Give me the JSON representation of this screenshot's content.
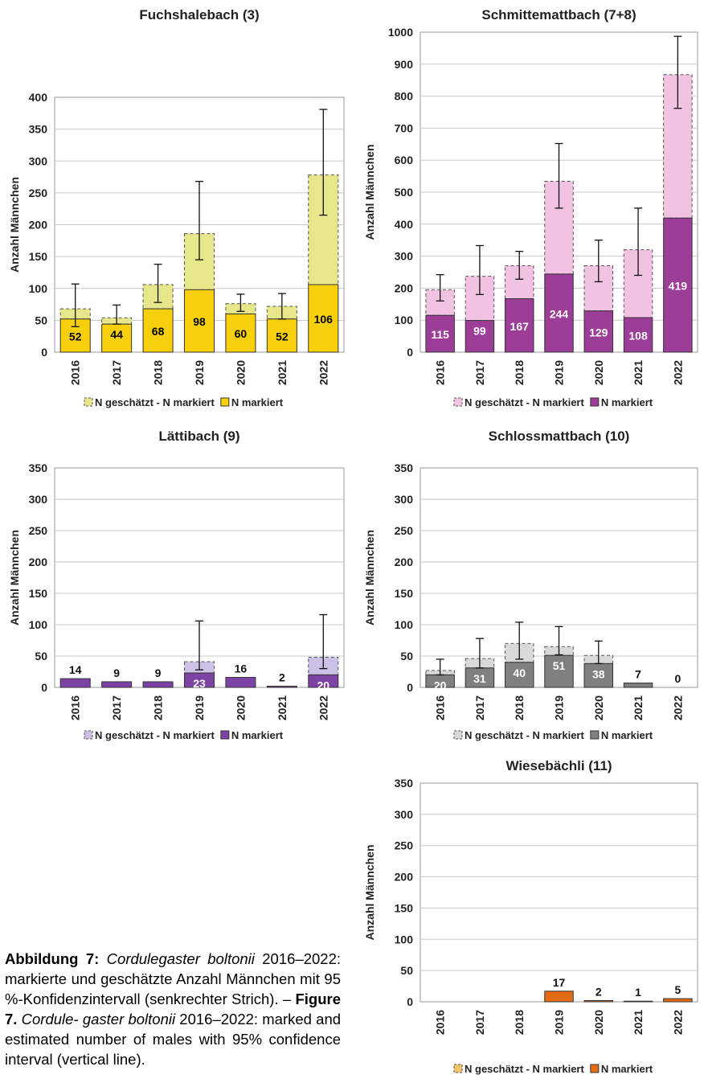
{
  "chart_data": [
    {
      "type": "bar",
      "stacked": true,
      "title": "Fuchshalebach (3)",
      "ylabel": "Anzahl Männchen",
      "categories": [
        "2016",
        "2017",
        "2018",
        "2019",
        "2020",
        "2021",
        "2022"
      ],
      "ylim": [
        0,
        400
      ],
      "yticks": [
        0,
        50,
        100,
        150,
        200,
        250,
        300,
        350,
        400
      ],
      "grid": true,
      "legend_position": "bottom",
      "colors": {
        "marked": "#f7cf0a",
        "estimated": "#e8e68a",
        "label": "#000000"
      },
      "series": [
        {
          "name": "N geschätzt - N markiert",
          "values": [
            16,
            10,
            38,
            88,
            16,
            20,
            172
          ]
        },
        {
          "name": "N markiert",
          "values": [
            52,
            44,
            68,
            98,
            60,
            52,
            106
          ]
        }
      ],
      "labels": [
        "52",
        "44",
        "68",
        "98",
        "60",
        "52",
        "106"
      ],
      "ci": [
        [
          40,
          107
        ],
        [
          44,
          74
        ],
        [
          78,
          138
        ],
        [
          145,
          268
        ],
        [
          64,
          91
        ],
        [
          52,
          92
        ],
        [
          215,
          381
        ]
      ]
    },
    {
      "type": "bar",
      "stacked": true,
      "title": "Schmittemattbach (7+8)",
      "ylabel": "Anzahl Männchen",
      "categories": [
        "2016",
        "2017",
        "2018",
        "2019",
        "2020",
        "2021",
        "2022"
      ],
      "ylim": [
        0,
        1000
      ],
      "yticks": [
        0,
        100,
        200,
        300,
        400,
        500,
        600,
        700,
        800,
        900,
        1000
      ],
      "grid": true,
      "legend_position": "bottom",
      "colors": {
        "marked": "#9c3d98",
        "estimated": "#f1c2e2",
        "label": "#ffffff"
      },
      "series": [
        {
          "name": "N geschätzt - N markiert",
          "values": [
            80,
            138,
            103,
            290,
            141,
            212,
            448
          ]
        },
        {
          "name": "N markiert",
          "values": [
            115,
            99,
            167,
            244,
            129,
            108,
            419
          ]
        }
      ],
      "labels": [
        "115",
        "99",
        "167",
        "244",
        "129",
        "108",
        "419"
      ],
      "ci": [
        [
          160,
          242
        ],
        [
          180,
          333
        ],
        [
          228,
          315
        ],
        [
          450,
          652
        ],
        [
          220,
          350
        ],
        [
          240,
          450
        ],
        [
          762,
          987
        ]
      ]
    },
    {
      "type": "bar",
      "stacked": true,
      "title": "Lättibach (9)",
      "ylabel": "Anzahl Männchen",
      "categories": [
        "2016",
        "2017",
        "2018",
        "2019",
        "2020",
        "2021",
        "2022"
      ],
      "ylim": [
        0,
        350
      ],
      "yticks": [
        0,
        50,
        100,
        150,
        200,
        250,
        300,
        350
      ],
      "grid": true,
      "legend_position": "bottom",
      "colors": {
        "marked": "#7d43a4",
        "estimated": "#cdc0e6",
        "label": "#ffffff"
      },
      "series": [
        {
          "name": "N geschätzt - N markiert",
          "values": [
            0,
            0,
            0,
            18,
            0,
            0,
            28
          ]
        },
        {
          "name": "N markiert",
          "values": [
            14,
            9,
            9,
            23,
            16,
            2,
            20
          ]
        }
      ],
      "labels": [
        "14",
        "9",
        "9",
        "23",
        "16",
        "2",
        "20"
      ],
      "labels_above": [
        true,
        true,
        true,
        false,
        true,
        true,
        false
      ],
      "ci": [
        null,
        null,
        null,
        [
          28,
          106
        ],
        null,
        null,
        [
          30,
          116
        ]
      ]
    },
    {
      "type": "bar",
      "stacked": true,
      "title": "Schlossmattbach (10)",
      "ylabel": "Anzahl Männchen",
      "categories": [
        "2016",
        "2017",
        "2018",
        "2019",
        "2020",
        "2021",
        "2022"
      ],
      "ylim": [
        0,
        350
      ],
      "yticks": [
        0,
        50,
        100,
        150,
        200,
        250,
        300,
        350
      ],
      "grid": true,
      "legend_position": "bottom",
      "colors": {
        "marked": "#808080",
        "estimated": "#d9d9d9",
        "label": "#ffffff"
      },
      "series": [
        {
          "name": "N geschätzt - N markiert",
          "values": [
            7,
            15,
            30,
            14,
            13,
            0,
            0
          ]
        },
        {
          "name": "N markiert",
          "values": [
            20,
            31,
            40,
            51,
            38,
            7,
            0
          ]
        }
      ],
      "labels": [
        "20",
        "31",
        "40",
        "51",
        "38",
        "7",
        "0"
      ],
      "labels_above": [
        false,
        false,
        false,
        false,
        false,
        true,
        true
      ],
      "ci": [
        [
          20,
          45
        ],
        [
          31,
          78
        ],
        [
          45,
          104
        ],
        [
          52,
          97
        ],
        [
          38,
          74
        ],
        null,
        null
      ]
    },
    {
      "type": "bar",
      "stacked": true,
      "title": "Wiesebächli (11)",
      "ylabel": "Anzahl Männchen",
      "categories": [
        "2016",
        "2017",
        "2018",
        "2019",
        "2020",
        "2021",
        "2022"
      ],
      "ylim": [
        0,
        350
      ],
      "yticks": [
        0,
        50,
        100,
        150,
        200,
        250,
        300,
        350
      ],
      "grid": true,
      "legend_position": "bottom",
      "colors": {
        "marked": "#e26b14",
        "estimated": "#f2c36a",
        "label": "#000000"
      },
      "series": [
        {
          "name": "N geschätzt - N markiert",
          "values": [
            0,
            0,
            0,
            0,
            0,
            0,
            0
          ]
        },
        {
          "name": "N markiert",
          "values": [
            0,
            0,
            0,
            17,
            2,
            1,
            5
          ]
        }
      ],
      "labels": [
        "",
        "",
        "",
        "17",
        "2",
        "1",
        "5"
      ],
      "labels_above": [
        true,
        true,
        true,
        true,
        true,
        true,
        true
      ],
      "ci": [
        null,
        null,
        null,
        null,
        null,
        null,
        null
      ]
    }
  ],
  "caption": {
    "de_label": "Abbildung 7:",
    "de_species": "Cordulegaster boltonii",
    "de_text_1": " 2016–2022: markierte und geschätzte Anzahl Männchen mit 95 %-Konfidenzintervall (senkrechter Strich). – ",
    "en_label": "Figure 7.",
    "en_species_1": " Cordule-",
    "en_species_2": "gaster boltonii",
    "en_text": " 2016–2022: marked and estimated number of males with 95% confidence interval (vertical line)."
  }
}
